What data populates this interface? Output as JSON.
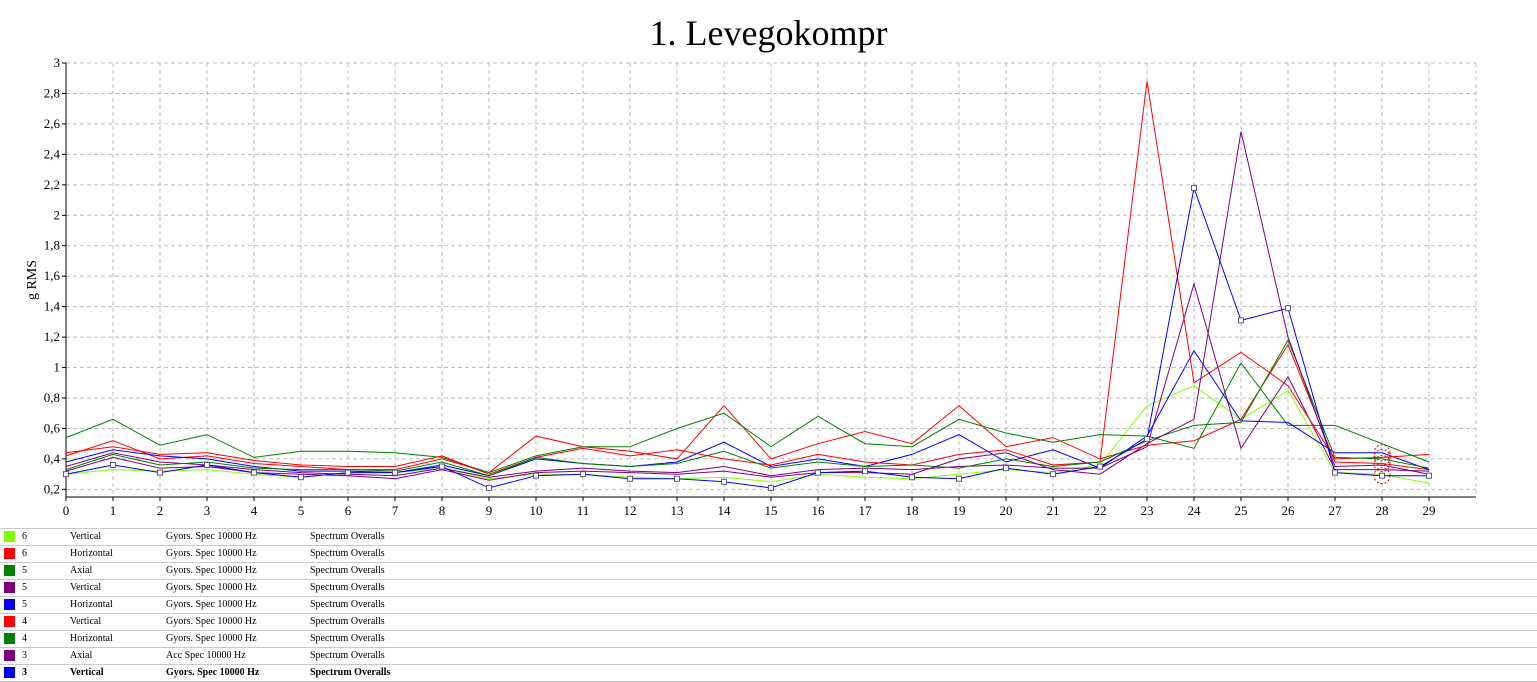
{
  "chart_data": {
    "type": "line",
    "title": "1. Levegokompr",
    "ylabel": "g RMS",
    "xlabel": "",
    "ylim": [
      0.15,
      3.0
    ],
    "xlim": [
      0,
      30
    ],
    "grid": true,
    "x_ticks": [
      "0",
      "1",
      "2",
      "3",
      "4",
      "5",
      "6",
      "7",
      "8",
      "9",
      "10",
      "11",
      "12",
      "13",
      "14",
      "15",
      "16",
      "17",
      "18",
      "19",
      "20",
      "21",
      "22",
      "23",
      "24",
      "25",
      "26",
      "27",
      "28",
      "29"
    ],
    "y_ticks": [
      "0,2",
      "0,4",
      "0,6",
      "0,8",
      "1",
      "1,2",
      "1,4",
      "1,6",
      "1,8",
      "2",
      "2,2",
      "2,4",
      "2,6",
      "2,8",
      "3"
    ],
    "series": [
      {
        "name": "6 Vertical",
        "color": "#80ff00",
        "values": [
          0.3,
          0.33,
          0.32,
          0.33,
          0.3,
          0.28,
          0.31,
          0.31,
          0.34,
          0.27,
          0.3,
          0.3,
          0.28,
          0.27,
          0.28,
          0.25,
          0.3,
          0.28,
          0.27,
          0.3,
          0.33,
          0.31,
          0.36,
          0.75,
          0.88,
          0.66,
          0.85,
          0.31,
          0.3,
          0.24
        ]
      },
      {
        "name": "6 Horizontal",
        "color": "#ff0000",
        "values": [
          0.42,
          0.52,
          0.4,
          0.42,
          0.37,
          0.35,
          0.33,
          0.33,
          0.4,
          0.31,
          0.55,
          0.48,
          0.45,
          0.4,
          0.75,
          0.4,
          0.5,
          0.58,
          0.5,
          0.75,
          0.48,
          0.54,
          0.4,
          0.49,
          0.52,
          0.66,
          1.15,
          0.38,
          0.37,
          0.33
        ]
      },
      {
        "name": "5 Axial",
        "color": "#008000",
        "values": [
          0.54,
          0.66,
          0.49,
          0.56,
          0.41,
          0.45,
          0.45,
          0.44,
          0.41,
          0.31,
          0.42,
          0.48,
          0.48,
          0.6,
          0.7,
          0.48,
          0.68,
          0.5,
          0.48,
          0.66,
          0.57,
          0.51,
          0.56,
          0.55,
          0.47,
          1.03,
          0.62,
          0.62,
          0.5,
          0.38
        ]
      },
      {
        "name": "5 Vertical",
        "color": "#800080",
        "values": [
          0.35,
          0.44,
          0.38,
          0.36,
          0.33,
          0.31,
          0.3,
          0.29,
          0.34,
          0.28,
          0.32,
          0.34,
          0.32,
          0.31,
          0.35,
          0.29,
          0.33,
          0.34,
          0.33,
          0.35,
          0.36,
          0.34,
          0.34,
          0.48,
          1.55,
          0.47,
          0.94,
          0.33,
          0.33,
          0.32
        ]
      },
      {
        "name": "5 Horizontal",
        "color": "#0000ff",
        "values": [
          0.38,
          0.46,
          0.42,
          0.4,
          0.35,
          0.32,
          0.32,
          0.31,
          0.36,
          0.29,
          0.4,
          0.37,
          0.35,
          0.38,
          0.51,
          0.35,
          0.4,
          0.35,
          0.43,
          0.56,
          0.38,
          0.46,
          0.34,
          0.55,
          1.11,
          0.65,
          0.64,
          0.44,
          0.44,
          0.33
        ]
      },
      {
        "name": "4 Vertical",
        "color": "#ff0000",
        "values": [
          0.44,
          0.48,
          0.43,
          0.44,
          0.39,
          0.36,
          0.35,
          0.35,
          0.42,
          0.3,
          0.41,
          0.47,
          0.42,
          0.46,
          0.4,
          0.36,
          0.43,
          0.38,
          0.36,
          0.43,
          0.46,
          0.36,
          0.38,
          2.88,
          0.9,
          1.1,
          0.88,
          0.4,
          0.41,
          0.43
        ]
      },
      {
        "name": "4 Horizontal",
        "color": "#008000",
        "values": [
          0.33,
          0.43,
          0.36,
          0.38,
          0.34,
          0.33,
          0.33,
          0.32,
          0.38,
          0.29,
          0.41,
          0.37,
          0.35,
          0.37,
          0.45,
          0.34,
          0.38,
          0.35,
          0.36,
          0.34,
          0.4,
          0.35,
          0.38,
          0.52,
          0.62,
          0.64,
          1.18,
          0.41,
          0.4,
          0.34
        ]
      },
      {
        "name": "3 Axial",
        "color": "#800080",
        "values": [
          0.32,
          0.41,
          0.34,
          0.35,
          0.31,
          0.3,
          0.29,
          0.27,
          0.33,
          0.26,
          0.31,
          0.32,
          0.31,
          0.3,
          0.32,
          0.28,
          0.31,
          0.31,
          0.3,
          0.4,
          0.44,
          0.33,
          0.3,
          0.5,
          0.66,
          2.55,
          1.2,
          0.35,
          0.36,
          0.3
        ]
      },
      {
        "name": "3 Vertical",
        "color": "#0000ff",
        "values": [
          0.3,
          0.36,
          0.31,
          0.36,
          0.31,
          0.28,
          0.31,
          0.31,
          0.35,
          0.21,
          0.29,
          0.3,
          0.27,
          0.27,
          0.25,
          0.21,
          0.31,
          0.32,
          0.28,
          0.27,
          0.34,
          0.3,
          0.35,
          0.53,
          2.18,
          1.31,
          1.39,
          0.31,
          0.29,
          0.29
        ]
      }
    ],
    "highlight_x": 28
  },
  "legend": [
    {
      "id": "6",
      "direction": "Vertical",
      "spec": "Gyors. Spec 10000 Hz",
      "type": "Spectrum Overalls",
      "color": "#80ff00"
    },
    {
      "id": "6",
      "direction": "Horizontal",
      "spec": "Gyors. Spec 10000 Hz",
      "type": "Spectrum Overalls",
      "color": "#ff0000"
    },
    {
      "id": "5",
      "direction": "Axial",
      "spec": "Gyors. Spec 10000 Hz",
      "type": "Spectrum Overalls",
      "color": "#008000"
    },
    {
      "id": "5",
      "direction": "Vertical",
      "spec": "Gyors. Spec 10000 Hz",
      "type": "Spectrum Overalls",
      "color": "#800080"
    },
    {
      "id": "5",
      "direction": "Horizontal",
      "spec": "Gyors. Spec 10000 Hz",
      "type": "Spectrum Overalls",
      "color": "#0000ff"
    },
    {
      "id": "4",
      "direction": "Vertical",
      "spec": "Gyors. Spec 10000 Hz",
      "type": "Spectrum Overalls",
      "color": "#ff0000"
    },
    {
      "id": "4",
      "direction": "Horizontal",
      "spec": "Gyors. Spec 10000 Hz",
      "type": "Spectrum Overalls",
      "color": "#008000"
    },
    {
      "id": "3",
      "direction": "Axial",
      "spec": "Acc Spec 10000 Hz",
      "type": "Spectrum Overalls",
      "color": "#800080"
    },
    {
      "id": "3",
      "direction": "Vertical",
      "spec": "Gyors. Spec 10000 Hz",
      "type": "Spectrum Overalls",
      "color": "#0000ff",
      "selected": true
    }
  ]
}
